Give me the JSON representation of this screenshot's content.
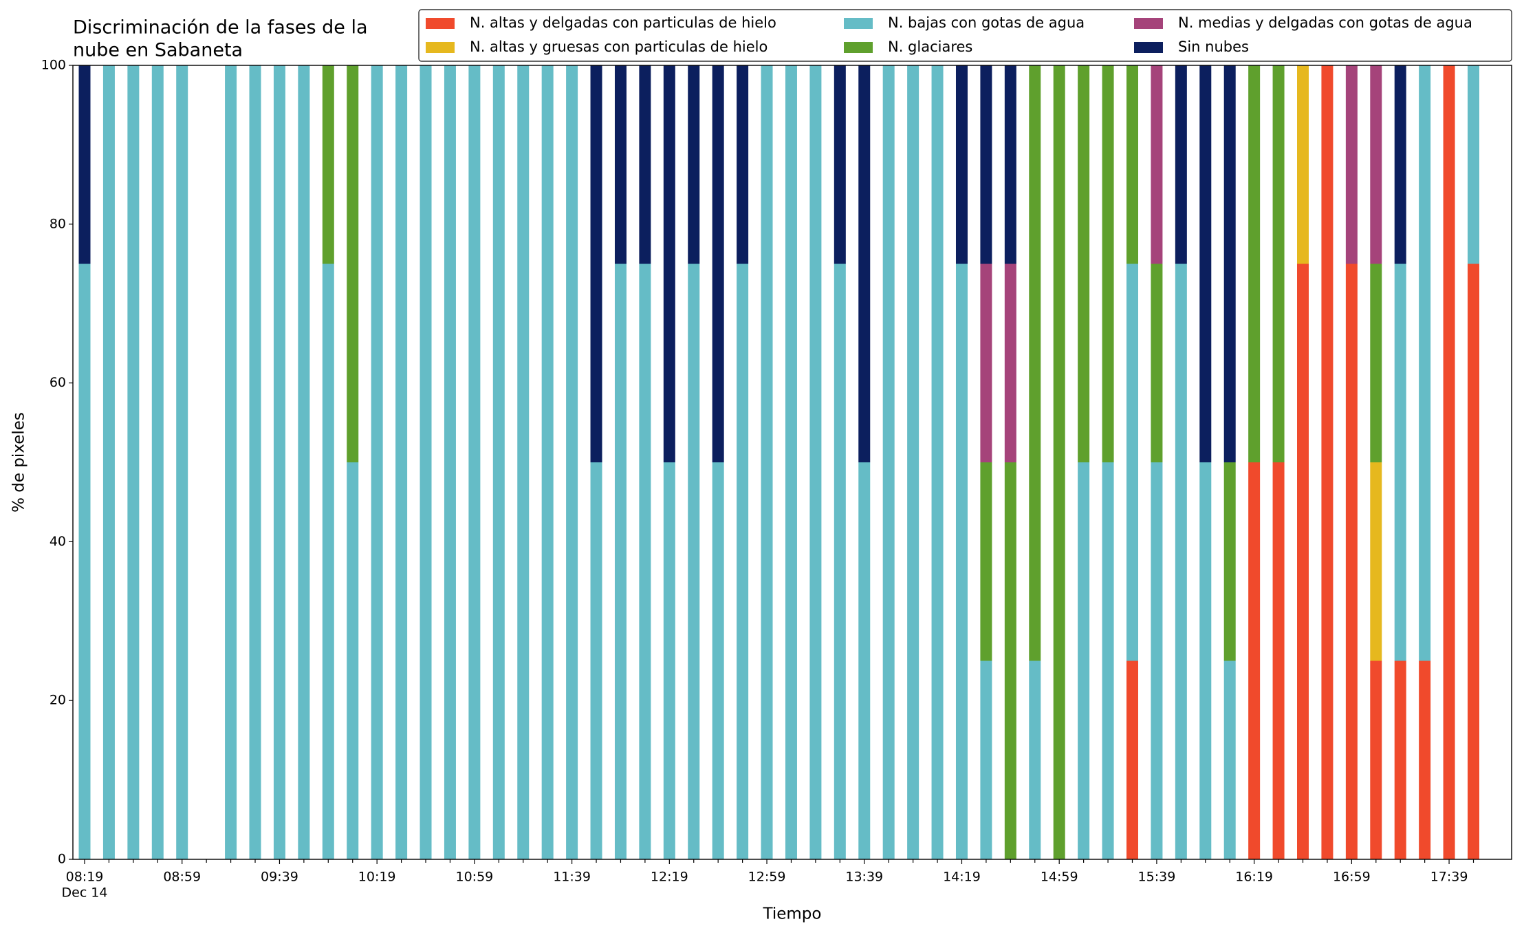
{
  "chart_data": {
    "type": "stacked_bar",
    "title": [
      "Discriminación de la fases de la",
      "nube en Sabaneta"
    ],
    "xlabel": "Tiempo",
    "ylabel": "% de pixeles",
    "x_date": "Dec 14",
    "categories": [
      "08:19",
      null,
      null,
      null,
      "08:59",
      null,
      null,
      null,
      "09:39",
      null,
      null,
      null,
      "10:19",
      null,
      null,
      null,
      "10:59",
      null,
      null,
      null,
      "11:39",
      null,
      null,
      null,
      "12:19",
      null,
      null,
      null,
      "12:59",
      null,
      null,
      null,
      "13:39",
      null,
      null,
      null,
      "14:19",
      null,
      null,
      null,
      "14:59",
      null,
      null,
      null,
      "15:39",
      null,
      null,
      null,
      "16:19",
      null,
      null,
      null,
      "16:59",
      null,
      null,
      null,
      "17:39",
      null
    ],
    "series": [
      {
        "name": "N. altas y delgadas con particulas de hielo",
        "color": "#f04a2c",
        "values": [
          0,
          0,
          0,
          0,
          0,
          0,
          0,
          0,
          0,
          0,
          0,
          0,
          0,
          0,
          0,
          0,
          0,
          0,
          0,
          0,
          0,
          0,
          0,
          0,
          0,
          0,
          0,
          0,
          0,
          0,
          0,
          0,
          0,
          0,
          0,
          0,
          0,
          0,
          0,
          0,
          0,
          0,
          0,
          25,
          0,
          0,
          0,
          0,
          50,
          50,
          75,
          100,
          75,
          25,
          25,
          25,
          100,
          75
        ]
      },
      {
        "name": "N. altas y gruesas con particulas de hielo",
        "color": "#e6b81e",
        "values": [
          0,
          0,
          0,
          0,
          0,
          0,
          0,
          0,
          0,
          0,
          0,
          0,
          0,
          0,
          0,
          0,
          0,
          0,
          0,
          0,
          0,
          0,
          0,
          0,
          0,
          0,
          0,
          0,
          0,
          0,
          0,
          0,
          0,
          0,
          0,
          0,
          0,
          0,
          0,
          0,
          0,
          0,
          0,
          0,
          0,
          0,
          0,
          0,
          0,
          0,
          25,
          0,
          0,
          25,
          0,
          0,
          0,
          0
        ]
      },
      {
        "name": "N. bajas con gotas de agua",
        "color": "#65bcc6",
        "values": [
          75,
          100,
          100,
          100,
          100,
          0,
          100,
          100,
          100,
          100,
          75,
          50,
          100,
          100,
          100,
          100,
          100,
          100,
          100,
          100,
          100,
          50,
          75,
          75,
          50,
          75,
          50,
          75,
          100,
          100,
          100,
          75,
          50,
          100,
          100,
          100,
          75,
          25,
          0,
          25,
          0,
          50,
          50,
          50,
          50,
          75,
          50,
          25,
          0,
          0,
          0,
          0,
          0,
          0,
          50,
          75,
          0,
          25
        ]
      },
      {
        "name": "N. glaciares",
        "color": "#5fa02d",
        "values": [
          0,
          0,
          0,
          0,
          0,
          0,
          0,
          0,
          0,
          0,
          25,
          50,
          0,
          0,
          0,
          0,
          0,
          0,
          0,
          0,
          0,
          0,
          0,
          0,
          0,
          0,
          0,
          0,
          0,
          0,
          0,
          0,
          0,
          0,
          0,
          0,
          0,
          25,
          50,
          75,
          100,
          50,
          50,
          25,
          25,
          0,
          0,
          25,
          50,
          50,
          0,
          0,
          0,
          25,
          0,
          0,
          0,
          0
        ]
      },
      {
        "name": "N. medias y delgadas con gotas de agua",
        "color": "#a5437a",
        "values": [
          0,
          0,
          0,
          0,
          0,
          0,
          0,
          0,
          0,
          0,
          0,
          0,
          0,
          0,
          0,
          0,
          0,
          0,
          0,
          0,
          0,
          0,
          0,
          0,
          0,
          0,
          0,
          0,
          0,
          0,
          0,
          0,
          0,
          0,
          0,
          0,
          0,
          25,
          25,
          0,
          0,
          0,
          0,
          0,
          25,
          0,
          0,
          0,
          0,
          0,
          0,
          0,
          25,
          25,
          0,
          0,
          0,
          0
        ]
      },
      {
        "name": "Sin nubes",
        "color": "#0c1f5e",
        "values": [
          25,
          0,
          0,
          0,
          0,
          0,
          0,
          0,
          0,
          0,
          0,
          0,
          0,
          0,
          0,
          0,
          0,
          0,
          0,
          0,
          0,
          50,
          25,
          25,
          50,
          25,
          50,
          25,
          0,
          0,
          0,
          25,
          50,
          0,
          0,
          0,
          25,
          25,
          25,
          0,
          0,
          0,
          0,
          0,
          0,
          25,
          50,
          50,
          0,
          0,
          0,
          0,
          0,
          0,
          25,
          0,
          0,
          0
        ]
      }
    ],
    "ylim": [
      0,
      100
    ],
    "yticks": [
      0,
      20,
      40,
      60,
      80,
      100
    ],
    "grid": false,
    "legend": "upper right"
  }
}
